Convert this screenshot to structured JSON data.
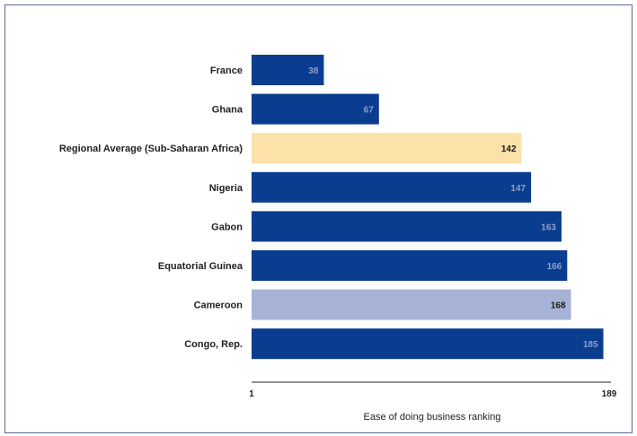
{
  "chart_data": {
    "type": "bar",
    "orientation": "horizontal",
    "categories": [
      "France",
      "Ghana",
      "Regional Average (Sub-Saharan Africa)",
      "Nigeria",
      "Gabon",
      "Equatorial Guinea",
      "Cameroon",
      "Congo, Rep."
    ],
    "values": [
      38,
      67,
      142,
      147,
      163,
      166,
      168,
      185
    ],
    "value_labels": [
      "38",
      "67",
      "142",
      "147",
      "163",
      "166",
      "168",
      "185"
    ],
    "bar_colors": [
      "#0a3d8f",
      "#0a3d8f",
      "#fce1a8",
      "#0a3d8f",
      "#0a3d8f",
      "#0a3d8f",
      "#a7b3d6",
      "#0a3d8f"
    ],
    "value_label_colors": [
      "#8ea0cc",
      "#8ea0cc",
      "#1a1a1a",
      "#8ea0cc",
      "#8ea0cc",
      "#8ea0cc",
      "#1a1a1a",
      "#8ea0cc"
    ],
    "xlabel": "Ease of doing business ranking",
    "xlim": [
      1,
      189
    ],
    "x_ticks": [
      "1",
      "189"
    ],
    "grid": false,
    "legend": "none"
  }
}
